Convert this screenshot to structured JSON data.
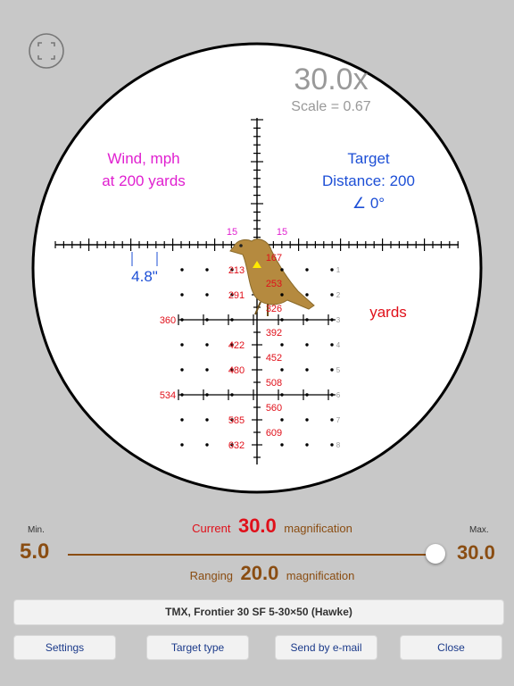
{
  "zoom": {
    "value": "30.0x",
    "scale": "Scale = 0.67"
  },
  "wind": {
    "line1": "Wind, mph",
    "line2": "at 200 yards"
  },
  "target": {
    "line1": "Target",
    "line2": "Distance: 200",
    "line3": "∠ 0°"
  },
  "reticle": {
    "top_marks": [
      "15",
      "15"
    ],
    "measure": "4.8\"",
    "units_label": "yards",
    "right_labels": [
      "1",
      "2",
      "3",
      "4",
      "5",
      "6",
      "7",
      "8"
    ],
    "distance_labels": [
      "167",
      "213",
      "253",
      "291",
      "326",
      "360",
      "392",
      "422",
      "452",
      "480",
      "508",
      "534",
      "560",
      "585",
      "609",
      "632"
    ]
  },
  "magnification": {
    "min_label": "Min.",
    "min_value": "5.0",
    "max_label": "Max.",
    "max_value": "30.0",
    "current_label": "Current",
    "current_value": "30.0",
    "current_unit": "magnification",
    "ranging_label": "Ranging",
    "ranging_value": "20.0",
    "ranging_unit": "magnification",
    "slider_fraction": 1.0
  },
  "model": "TMX, Frontier 30 SF 5-30×50 (Hawke)",
  "buttons": {
    "settings": "Settings",
    "target_type": "Target type",
    "send": "Send by e-mail",
    "close": "Close"
  },
  "colors": {
    "background": "#c8c8c8",
    "wind_text": "#e020d0",
    "target_text": "#1d4fd6",
    "distance_text": "#e0101a",
    "bird": "#b58a3f",
    "magnification_value": "#8a4d12"
  }
}
